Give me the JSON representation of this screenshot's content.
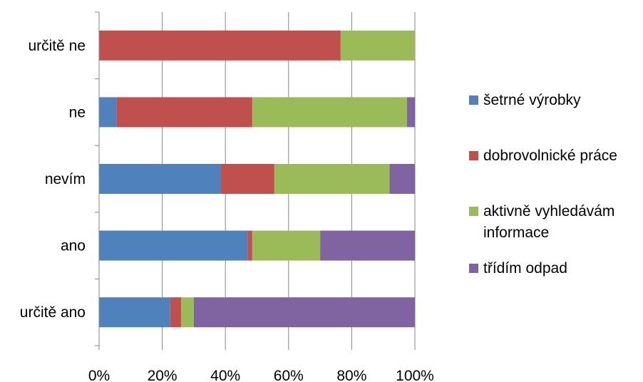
{
  "chart_data": {
    "type": "bar",
    "orientation": "horizontal",
    "stacked": "percent",
    "categories": [
      "určitě ne",
      "ne",
      "nevím",
      "ano",
      "určitě ano"
    ],
    "series": [
      {
        "name": "šetrné výrobky",
        "color": "#4f81bd",
        "values": [
          0,
          5.5,
          38.5,
          47,
          22.5
        ]
      },
      {
        "name": "dobrovolnické práce",
        "color": "#c0504d",
        "values": [
          76.5,
          43,
          17,
          1.5,
          3.5
        ]
      },
      {
        "name": "aktivně vyhledávám informace",
        "legend_lines": [
          "aktivně vyhledávám",
          "informace"
        ],
        "color": "#9bbb59",
        "values": [
          23.5,
          49,
          36.5,
          21.5,
          4
        ]
      },
      {
        "name": "třídím odpad",
        "color": "#8064a2",
        "values": [
          0,
          2.5,
          8,
          30,
          70
        ]
      }
    ],
    "xticks": [
      "0%",
      "20%",
      "40%",
      "60%",
      "80%",
      "100%"
    ],
    "xlim": [
      0,
      100
    ],
    "grid": "vertical",
    "legend": "right",
    "title": "",
    "xlabel": "",
    "ylabel": ""
  }
}
